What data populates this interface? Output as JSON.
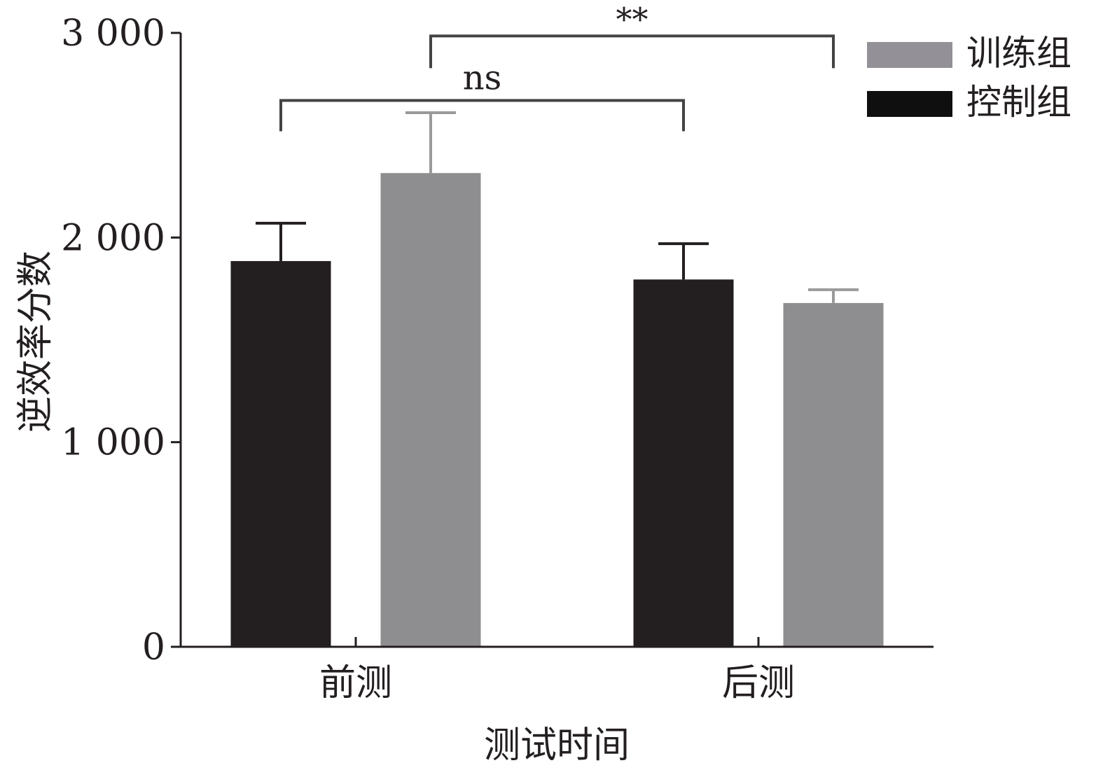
{
  "chart_data": {
    "type": "bar",
    "categories": [
      "前测",
      "后测"
    ],
    "series": [
      {
        "name": "控制组",
        "color": "#231f20",
        "values": [
          1885,
          1795
        ],
        "error": [
          185,
          175
        ]
      },
      {
        "name": "训练组",
        "color": "#8e8d8f",
        "values": [
          2315,
          1680
        ],
        "error": [
          295,
          65
        ]
      }
    ],
    "legend_colors": [
      "#939197",
      "#0f0f0f"
    ],
    "xlabel": "测试时间",
    "ylabel": "逆效率分数",
    "ylim": [
      0,
      3000
    ],
    "yticks": [
      0,
      1000,
      2000,
      3000
    ],
    "ytick_labels": [
      "0",
      "1 000",
      "2 000",
      "3 000"
    ],
    "grid": false,
    "legend_position": "top-right",
    "legend": [
      {
        "label": "训练组",
        "series": 1
      },
      {
        "label": "控制组",
        "series": 0
      }
    ],
    "annotations": [
      {
        "label": "ns",
        "from": {
          "category": 0,
          "series": 0
        },
        "to": {
          "category": 1,
          "series": 0
        },
        "level": 2670
      },
      {
        "label": "**",
        "from": {
          "category": 0,
          "series": 1
        },
        "to": {
          "category": 1,
          "series": 1
        },
        "level": 2985
      }
    ]
  }
}
